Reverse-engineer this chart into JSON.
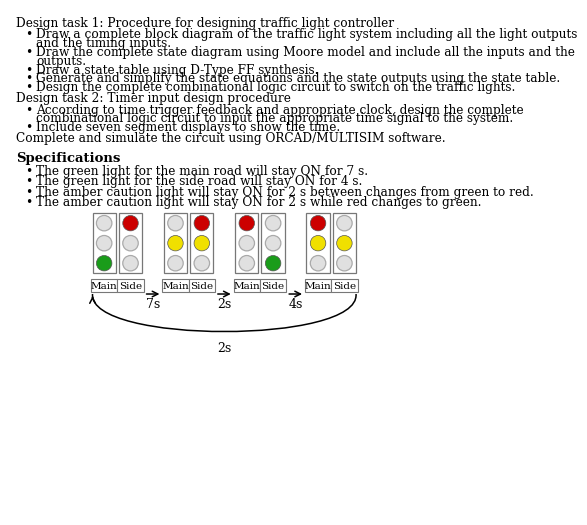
{
  "title": "Design task 1: Procedure for designing traffic light controller",
  "task1_bullets": [
    [
      "Draw a complete block diagram of the traffic light system including all the light outputs",
      "and the timing inputs."
    ],
    [
      "Draw the complete state diagram using Moore model and include all the inputs and the",
      "outputs."
    ],
    [
      "Draw a state table using D-Type FF synthesis."
    ],
    [
      "Generate and simplify the state equations and the state outputs using the state table."
    ],
    [
      "Design the complete combinational logic circuit to switch on the traffic lights."
    ]
  ],
  "task2_title": "Design task 2: Timer input design procedure",
  "task2_bullets": [
    [
      "According to time trigger feedback and appropriate clock, design the complete",
      "combinational logic circuit to input the appropriate time signal to the system."
    ],
    [
      "Include seven segment displays to show the time."
    ]
  ],
  "complete_text": "Complete and simulate the circuit using ORCAD/MULTISIM software.",
  "specs_title": "Specifications",
  "specs_bullets": [
    "The green light for the main road will stay ON for 7 s.",
    "The green light for the side road will stay ON for 4 s.",
    "The amber caution light will stay ON for 2 s between changes from green to red.",
    "The amber caution light will stay ON for 2 s while red changes to green."
  ],
  "traffic_lights": [
    {
      "main": [
        "off",
        "off",
        "green"
      ],
      "side": [
        "red",
        "off",
        "off"
      ]
    },
    {
      "main": [
        "off",
        "yellow",
        "off"
      ],
      "side": [
        "red",
        "yellow",
        "off"
      ]
    },
    {
      "main": [
        "red",
        "off",
        "off"
      ],
      "side": [
        "off",
        "off",
        "green"
      ]
    },
    {
      "main": [
        "red",
        "yellow",
        "off"
      ],
      "side": [
        "off",
        "yellow",
        "off"
      ]
    }
  ],
  "bg_color": "#ffffff",
  "text_color": "#000000",
  "light_colors": {
    "red": "#cc0000",
    "yellow": "#f0e000",
    "green": "#1a9c1a",
    "off": "#e0e0e0"
  }
}
